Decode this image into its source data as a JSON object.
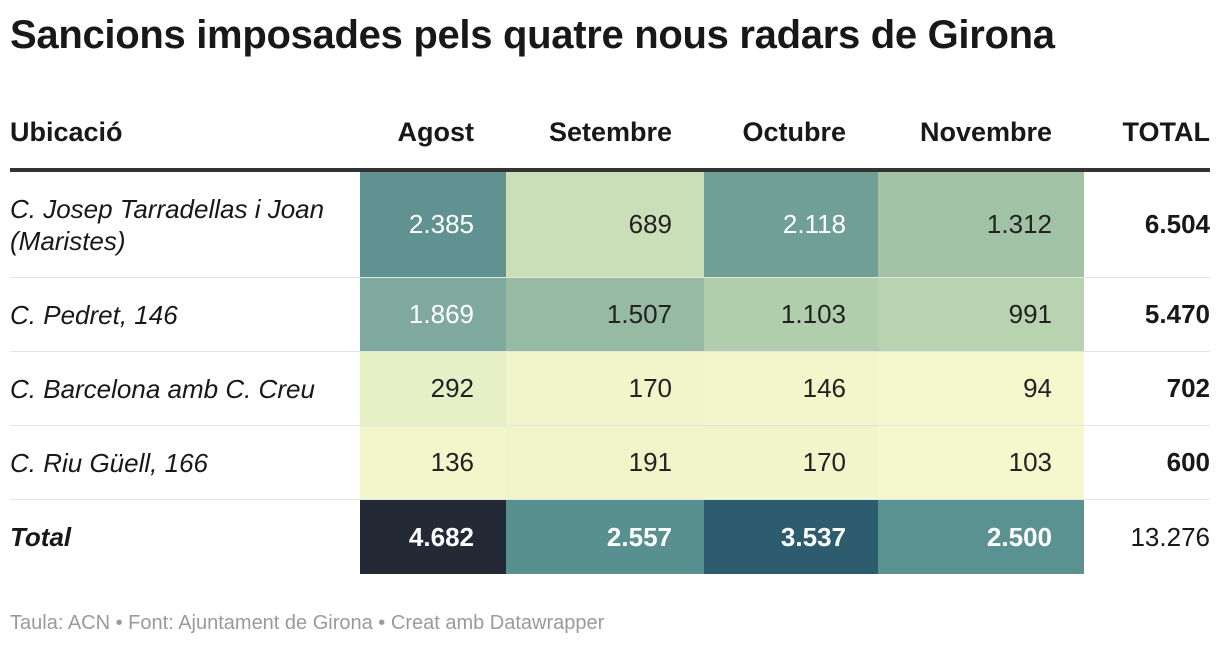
{
  "title": "Sancions imposades pels quatre nous radars de Girona",
  "footer": "Taula: ACN • Font: Ajuntament de Girona • Creat amb Datawrapper",
  "chart_data": {
    "type": "table",
    "title": "Sancions imposades pels quatre nous radars de Girona",
    "columns": [
      "Ubicació",
      "Agost",
      "Setembre",
      "Octubre",
      "Novembre",
      "TOTAL"
    ],
    "rows": [
      {
        "label": "C. Josep Tarradellas i Joan (Maristes)",
        "cells": [
          {
            "text": "2.385",
            "value": 2385,
            "color": "#5f9290",
            "light": true
          },
          {
            "text": "689",
            "value": 689,
            "color": "#cadfb7",
            "light": false
          },
          {
            "text": "2.118",
            "value": 2118,
            "color": "#6f9f95",
            "light": true
          },
          {
            "text": "1.312",
            "value": 1312,
            "color": "#a1c2a4",
            "light": false
          }
        ],
        "total": "6.504"
      },
      {
        "label": "C. Pedret, 146",
        "cells": [
          {
            "text": "1.869",
            "value": 1869,
            "color": "#7ea99c",
            "light": true
          },
          {
            "text": "1.507",
            "value": 1507,
            "color": "#96baa2",
            "light": false
          },
          {
            "text": "1.103",
            "value": 1103,
            "color": "#b0cdac",
            "light": false
          },
          {
            "text": "991",
            "value": 991,
            "color": "#b8d3b0",
            "light": false
          }
        ],
        "total": "5.470"
      },
      {
        "label": "C. Barcelona amb C. Creu",
        "cells": [
          {
            "text": "292",
            "value": 292,
            "color": "#e6efc6",
            "light": false
          },
          {
            "text": "170",
            "value": 170,
            "color": "#f0f6ca",
            "light": false
          },
          {
            "text": "146",
            "value": 146,
            "color": "#f2f7cb",
            "light": false
          },
          {
            "text": "94",
            "value": 94,
            "color": "#f4f8cc",
            "light": false
          }
        ],
        "total": "702"
      },
      {
        "label": "C. Riu Güell, 166",
        "cells": [
          {
            "text": "136",
            "value": 136,
            "color": "#f2f7cb",
            "light": false
          },
          {
            "text": "191",
            "value": 191,
            "color": "#eff5c9",
            "light": false
          },
          {
            "text": "170",
            "value": 170,
            "color": "#f0f6ca",
            "light": false
          },
          {
            "text": "103",
            "value": 103,
            "color": "#f4f8cc",
            "light": false
          }
        ],
        "total": "600"
      }
    ],
    "total_row": {
      "label": "Total",
      "cells": [
        {
          "text": "4.682",
          "value": 4682,
          "color": "#232935",
          "light": true
        },
        {
          "text": "2.557",
          "value": 2557,
          "color": "#588f8f",
          "light": true
        },
        {
          "text": "3.537",
          "value": 3537,
          "color": "#2d5c6e",
          "light": true
        },
        {
          "text": "2.500",
          "value": 2500,
          "color": "#5a9191",
          "light": true
        }
      ],
      "total": "13.276"
    }
  }
}
